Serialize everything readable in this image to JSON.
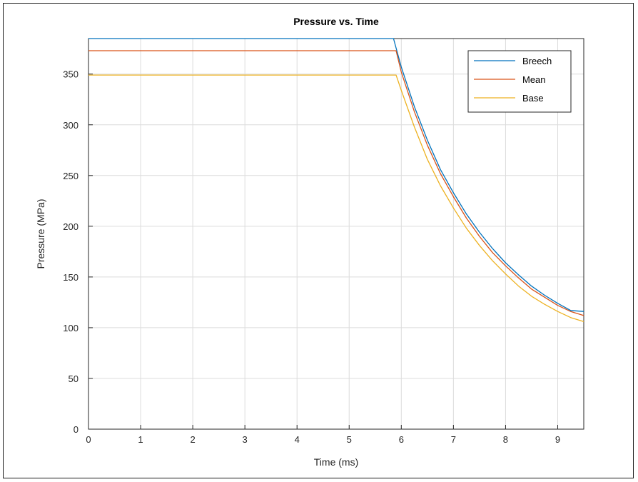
{
  "chart_data": {
    "type": "line",
    "title": "Pressure vs. Time",
    "xlabel": "Time (ms)",
    "ylabel": "Pressure (MPa)",
    "xlim": [
      0,
      9.5
    ],
    "ylim": [
      0,
      385
    ],
    "xticks": [
      0,
      1,
      2,
      3,
      4,
      5,
      6,
      7,
      8,
      9
    ],
    "yticks": [
      0,
      50,
      100,
      150,
      200,
      250,
      300,
      350
    ],
    "grid": true,
    "legend_position": "top-right",
    "series": [
      {
        "name": "Breech",
        "color": "#0072BD",
        "x": [
          0,
          5.85,
          6.0,
          6.25,
          6.5,
          6.75,
          7.0,
          7.25,
          7.5,
          7.75,
          8.0,
          8.25,
          8.5,
          8.75,
          9.0,
          9.25,
          9.5
        ],
        "y": [
          385,
          385,
          357,
          318,
          285,
          256,
          233,
          212,
          194,
          178,
          164,
          152,
          141,
          132,
          124,
          117,
          116
        ]
      },
      {
        "name": "Mean",
        "color": "#D95319",
        "x": [
          0,
          5.9,
          6.0,
          6.25,
          6.5,
          6.75,
          7.0,
          7.25,
          7.5,
          7.75,
          8.0,
          8.25,
          8.5,
          8.75,
          9.0,
          9.25,
          9.5
        ],
        "y": [
          373,
          373,
          352,
          313,
          280,
          252,
          229,
          208,
          190,
          174,
          161,
          149,
          138,
          130,
          122,
          116,
          112
        ]
      },
      {
        "name": "Base",
        "color": "#EDB120",
        "x": [
          0,
          5.9,
          6.0,
          6.25,
          6.5,
          6.75,
          7.0,
          7.25,
          7.5,
          7.75,
          8.0,
          8.25,
          8.5,
          8.75,
          9.0,
          9.25,
          9.5
        ],
        "y": [
          349,
          349,
          334,
          298,
          266,
          240,
          218,
          198,
          181,
          166,
          153,
          141,
          131,
          123,
          116,
          110,
          106
        ]
      }
    ]
  }
}
